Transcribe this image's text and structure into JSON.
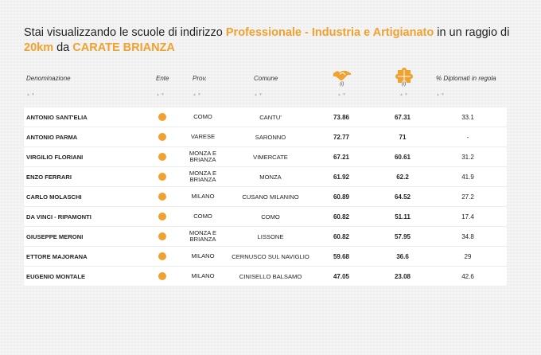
{
  "heading": {
    "prefix": "Stai visualizzando le scuole di indirizzo ",
    "indirizzo": "Professionale - Industria e Artigianato",
    "middle": " in un raggio di ",
    "raggio": "20km",
    "da": " da ",
    "citta": "CARATE BRIANZA"
  },
  "columns": {
    "denominazione": "Denominazione",
    "ente": "Ente",
    "prov": "Prov.",
    "comune": "Comune",
    "info1": "(i)",
    "info2": "(i)",
    "diplomati": "% Diplomati in regola",
    "icon1": "handshake-icon",
    "icon2": "puzzle-icon",
    "sort_glyph": "▲▼"
  },
  "colors": {
    "accent": "#f0a12f",
    "background": "#f4f4f4"
  },
  "rows": [
    {
      "name": "ANTONIO SANT'ELIA",
      "prov": "COMO",
      "comune": "CANTU'",
      "v1": "73.86",
      "v2": "67.31",
      "pct": "33.1"
    },
    {
      "name": "ANTONIO PARMA",
      "prov": "VARESE",
      "comune": "SARONNO",
      "v1": "72.77",
      "v2": "71",
      "pct": "-"
    },
    {
      "name": "VIRGILIO FLORIANI",
      "prov": "MONZA E BRIANZA",
      "comune": "VIMERCATE",
      "v1": "67.21",
      "v2": "60.61",
      "pct": "31.2"
    },
    {
      "name": "ENZO FERRARI",
      "prov": "MONZA E BRIANZA",
      "comune": "MONZA",
      "v1": "61.92",
      "v2": "62.2",
      "pct": "41.9"
    },
    {
      "name": "CARLO MOLASCHI",
      "prov": "MILANO",
      "comune": "CUSANO MILANINO",
      "v1": "60.89",
      "v2": "64.52",
      "pct": "27.2"
    },
    {
      "name": "DA VINCI - RIPAMONTI",
      "prov": "COMO",
      "comune": "COMO",
      "v1": "60.82",
      "v2": "51.11",
      "pct": "17.4"
    },
    {
      "name": "GIUSEPPE MERONI",
      "prov": "MONZA E BRIANZA",
      "comune": "LISSONE",
      "v1": "60.82",
      "v2": "57.95",
      "pct": "34.8"
    },
    {
      "name": "ETTORE MAJORANA",
      "prov": "MILANO",
      "comune": "CERNUSCO SUL NAVIGLIO",
      "v1": "59.68",
      "v2": "36.6",
      "pct": "29"
    },
    {
      "name": "EUGENIO MONTALE",
      "prov": "MILANO",
      "comune": "CINISELLO BALSAMO",
      "v1": "47.05",
      "v2": "23.08",
      "pct": "42.6"
    }
  ]
}
